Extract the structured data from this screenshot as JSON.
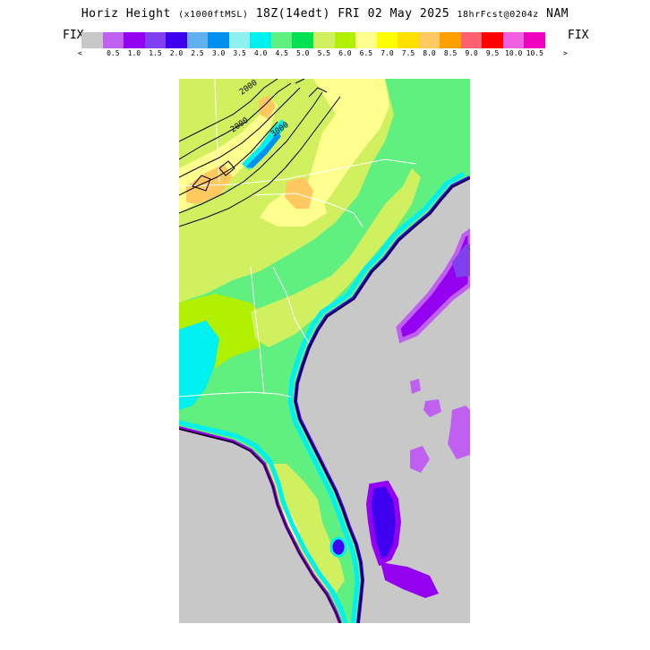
{
  "title": {
    "main": "Horiz Height",
    "units": "(x1000ftMSL)",
    "valid": "18Z(14edt) FRI 02 May 2025",
    "forecast": "18hrFcst@0204z",
    "model": "NAM"
  },
  "fix_left": "FIX",
  "fix_right": "FIX",
  "legend": {
    "colors": [
      "#c8c8c8",
      "#c060f0",
      "#9400f0",
      "#8040f0",
      "#4000f0",
      "#60b0f0",
      "#0090f0",
      "#90f0f0",
      "#00f0f0",
      "#60f080",
      "#00e050",
      "#d0f060",
      "#b0f000",
      "#ffff90",
      "#ffff00",
      "#ffe000",
      "#ffc860",
      "#ffa000",
      "#ff6070",
      "#ff0000",
      "#f060e0",
      "#f000c0"
    ],
    "tick_labels": [
      "<",
      "0.5",
      "1.0",
      "1.5",
      "2.0",
      "2.5",
      "3.0",
      "3.5",
      "4.0",
      "4.5",
      "5.0",
      "5.5",
      "6.0",
      "6.5",
      "7.0",
      "7.5",
      "8.0",
      "8.5",
      "9.0",
      "9.5",
      "10.0",
      "10.5",
      ">"
    ]
  },
  "colors": {
    "land_base": "#60f080",
    "ocean": "#c8c8c8",
    "contour": "#000000",
    "border": "#ffffff"
  },
  "contour_labels": [
    "2000",
    "3000",
    "2000"
  ]
}
